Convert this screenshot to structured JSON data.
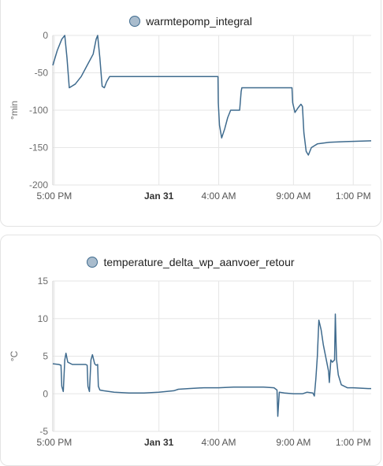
{
  "charts": [
    {
      "title": "warmtepomp_integral",
      "unit": "°min",
      "series_color": "#3f6b8e",
      "legend_fill": "#a9bccd",
      "y_ticks": [
        "0",
        "-50",
        "-100",
        "-150",
        "-200"
      ],
      "x_ticks": [
        "5:00 PM",
        "Jan 31",
        "4:00 AM",
        "9:00 AM",
        "1:00 PM"
      ]
    },
    {
      "title": "temperature_delta_wp_aanvoer_retour",
      "unit": "°C",
      "series_color": "#3f6b8e",
      "legend_fill": "#a9bccd",
      "y_ticks": [
        "15",
        "10",
        "5",
        "0",
        "-5"
      ],
      "x_ticks": [
        "5:00 PM",
        "Jan 31",
        "4:00 AM",
        "9:00 AM",
        "1:00 PM"
      ]
    }
  ],
  "chart_data": [
    {
      "type": "line",
      "title": "warmtepomp_integral",
      "ylabel": "°min",
      "x_unit": "hours since 5:00 PM (Jan 30)",
      "xlim": [
        -0.1,
        21.2
      ],
      "ylim": [
        -200,
        0
      ],
      "x_tick_values": [
        0,
        7,
        11,
        16,
        20
      ],
      "grid": true,
      "legend_position": "top-center",
      "series": [
        {
          "name": "warmtepomp_integral",
          "points": [
            [
              -0.1,
              -40
            ],
            [
              0.2,
              -20
            ],
            [
              0.5,
              -5
            ],
            [
              0.7,
              0
            ],
            [
              0.85,
              -30
            ],
            [
              1.0,
              -70
            ],
            [
              1.4,
              -65
            ],
            [
              1.8,
              -55
            ],
            [
              2.2,
              -40
            ],
            [
              2.6,
              -25
            ],
            [
              2.8,
              -5
            ],
            [
              2.9,
              0
            ],
            [
              3.05,
              -30
            ],
            [
              3.2,
              -68
            ],
            [
              3.35,
              -70
            ],
            [
              3.5,
              -62
            ],
            [
              3.7,
              -55
            ],
            [
              10.95,
              -55
            ],
            [
              10.97,
              -90
            ],
            [
              11.05,
              -120
            ],
            [
              11.2,
              -137
            ],
            [
              11.4,
              -125
            ],
            [
              11.6,
              -110
            ],
            [
              11.8,
              -100
            ],
            [
              12.4,
              -100
            ],
            [
              12.5,
              -75
            ],
            [
              12.55,
              -70
            ],
            [
              15.9,
              -70
            ],
            [
              15.95,
              -90
            ],
            [
              16.1,
              -103
            ],
            [
              16.3,
              -97
            ],
            [
              16.5,
              -92
            ],
            [
              16.6,
              -95
            ],
            [
              16.7,
              -130
            ],
            [
              16.85,
              -155
            ],
            [
              17.0,
              -160
            ],
            [
              17.2,
              -150
            ],
            [
              17.6,
              -145
            ],
            [
              18.4,
              -143
            ],
            [
              19.5,
              -142
            ],
            [
              21.2,
              -141
            ]
          ]
        }
      ]
    },
    {
      "type": "line",
      "title": "temperature_delta_wp_aanvoer_retour",
      "ylabel": "°C",
      "x_unit": "hours since 5:00 PM (Jan 30)",
      "xlim": [
        -0.1,
        21.2
      ],
      "ylim": [
        -5,
        15
      ],
      "x_tick_values": [
        0,
        7,
        11,
        16,
        20
      ],
      "grid": true,
      "legend_position": "top-center",
      "series": [
        {
          "name": "temperature_delta_wp_aanvoer_retour",
          "points": [
            [
              -0.1,
              4.0
            ],
            [
              0.3,
              3.9
            ],
            [
              0.45,
              3.8
            ],
            [
              0.5,
              1.0
            ],
            [
              0.6,
              0.3
            ],
            [
              0.7,
              4.5
            ],
            [
              0.78,
              5.4
            ],
            [
              0.9,
              4.2
            ],
            [
              1.2,
              3.9
            ],
            [
              2.1,
              3.9
            ],
            [
              2.2,
              3.8
            ],
            [
              2.25,
              1.0
            ],
            [
              2.35,
              0.3
            ],
            [
              2.45,
              4.5
            ],
            [
              2.55,
              5.2
            ],
            [
              2.7,
              4.0
            ],
            [
              2.8,
              3.8
            ],
            [
              2.9,
              3.9
            ],
            [
              2.95,
              1.0
            ],
            [
              3.05,
              0.5
            ],
            [
              3.3,
              0.4
            ],
            [
              4.0,
              0.2
            ],
            [
              5.0,
              0.1
            ],
            [
              6.0,
              0.1
            ],
            [
              7.0,
              0.2
            ],
            [
              8.0,
              0.4
            ],
            [
              8.3,
              0.6
            ],
            [
              9.0,
              0.7
            ],
            [
              10.0,
              0.8
            ],
            [
              11.0,
              0.8
            ],
            [
              12.0,
              0.9
            ],
            [
              13.0,
              0.9
            ],
            [
              14.0,
              0.9
            ],
            [
              14.7,
              0.8
            ],
            [
              14.9,
              0.5
            ],
            [
              14.95,
              -3.0
            ],
            [
              15.05,
              0.2
            ],
            [
              15.4,
              0.1
            ],
            [
              16.0,
              0.0
            ],
            [
              16.6,
              0.0
            ],
            [
              16.9,
              0.2
            ],
            [
              17.3,
              0.1
            ],
            [
              17.4,
              -0.3
            ],
            [
              17.5,
              2.0
            ],
            [
              17.6,
              5.0
            ],
            [
              17.7,
              9.8
            ],
            [
              17.85,
              8.5
            ],
            [
              18.0,
              6.5
            ],
            [
              18.2,
              4.5
            ],
            [
              18.35,
              3.0
            ],
            [
              18.4,
              1.5
            ],
            [
              18.5,
              4.5
            ],
            [
              18.6,
              4.2
            ],
            [
              18.75,
              4.5
            ],
            [
              18.8,
              10.6
            ],
            [
              18.88,
              4.6
            ],
            [
              19.0,
              2.5
            ],
            [
              19.2,
              1.2
            ],
            [
              19.4,
              1.0
            ],
            [
              19.6,
              0.8
            ],
            [
              20.0,
              0.8
            ],
            [
              21.0,
              0.7
            ],
            [
              21.2,
              0.7
            ]
          ]
        }
      ]
    }
  ]
}
